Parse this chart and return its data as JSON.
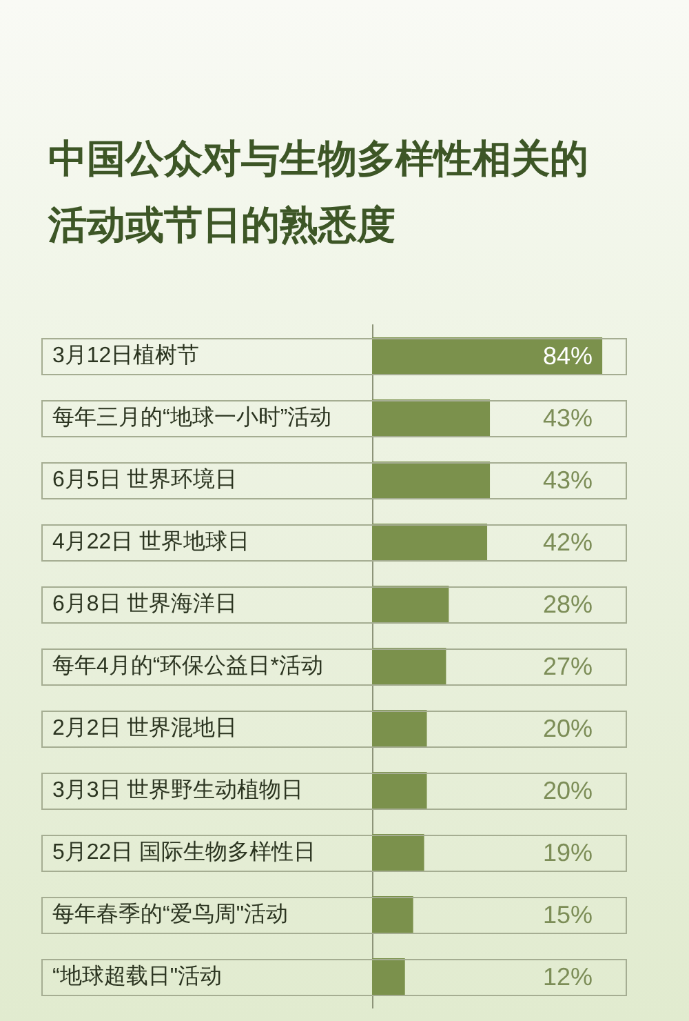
{
  "chart_data": {
    "type": "bar",
    "orientation": "horizontal",
    "title": "中国公众对与生物多样性相关的活动或节日的熟悉度",
    "categories": [
      "3月12日植树节",
      "每年三月的“地球一小时”活动",
      "6月5日 世界环境日",
      "4月22日 世界地球日",
      "6月8日 世界海洋日",
      "每年4月的“环保公益日*活动",
      "2月2日 世界混地日",
      "3月3日 世界野生动植物日",
      "5月22日 国际生物多样性日",
      "每年春季的“爱鸟周\"活动",
      "“地球超载日\"活动"
    ],
    "values": [
      84,
      43,
      43,
      42,
      28,
      27,
      20,
      20,
      19,
      15,
      12
    ],
    "value_labels": [
      "84%",
      "43%",
      "43%",
      "42%",
      "28%",
      "27%",
      "20%",
      "20%",
      "19%",
      "15%",
      "12%"
    ],
    "color": "#7b914c",
    "tick_labels": "y",
    "grid": false
  }
}
